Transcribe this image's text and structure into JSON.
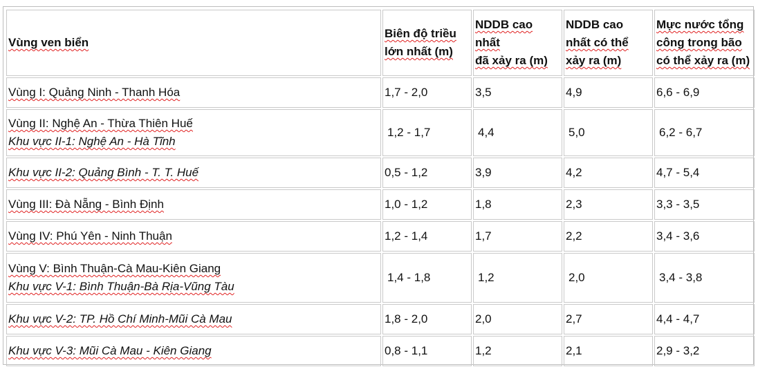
{
  "headers": [
    {
      "lines": [
        {
          "text": "Vùng ven biển",
          "ul": true
        }
      ]
    },
    {
      "lines": [
        {
          "text": "Biên độ triều",
          "ul": true
        },
        {
          "text": "lớn nhất (m)",
          "ul": true
        }
      ]
    },
    {
      "lines": [
        {
          "text": "NDDB cao nhất",
          "ul": true
        },
        {
          "text": "đã xảy ra (m)",
          "ul": true
        }
      ]
    },
    {
      "lines": [
        {
          "text": "NDDB cao",
          "ul": false
        },
        {
          "text": "nhất có thể",
          "ul": true
        },
        {
          "text": "xảy ra (m)",
          "ul": true
        }
      ]
    },
    {
      "lines": [
        {
          "text": "Mực nước tổng",
          "ul": true
        },
        {
          "text": "công trong bão",
          "ul": true
        },
        {
          "text": "có thể xảy ra (m)",
          "ul": true
        }
      ]
    }
  ],
  "rows": [
    {
      "region": [
        {
          "text": "Vùng I: Quảng Ninh - Thanh Hóa",
          "italic": false
        }
      ],
      "tide": "1,7 - 2,0",
      "nddb_max": "3,5",
      "nddb_possible": "4,9",
      "total_level": "6,6 - 6,9"
    },
    {
      "region": [
        {
          "text": "Vùng II: Nghệ An - Thừa Thiên Huế",
          "italic": false
        },
        {
          "text": "Khu vực II-1: Nghệ An - Hà Tĩnh",
          "italic": true
        }
      ],
      "tide": "1,2 - 1,7",
      "nddb_max": "4,4",
      "nddb_possible": "5,0",
      "total_level": "6,2 - 6,7"
    },
    {
      "region": [
        {
          "text": "Khu vực II-2: Quảng Bình - T. T. Huế",
          "italic": true
        }
      ],
      "tide": "0,5 - 1,2",
      "nddb_max": "3,9",
      "nddb_possible": "4,2",
      "total_level": "4,7 - 5,4"
    },
    {
      "region": [
        {
          "text": "Vùng III: Đà Nẵng - Bình Định",
          "italic": false
        }
      ],
      "tide": "1,0 - 1,2",
      "nddb_max": "1,8",
      "nddb_possible": "2,3",
      "total_level": "3,3 - 3,5"
    },
    {
      "region": [
        {
          "text": "Vùng IV: Phú Yên - Ninh Thuận",
          "italic": false
        }
      ],
      "tide": "1,2 - 1,4",
      "nddb_max": "1,7",
      "nddb_possible": "2,2",
      "total_level": "3,4 - 3,6"
    },
    {
      "region": [
        {
          "text": "Vùng V: Bình Thuận-Cà Mau-Kiên Giang",
          "italic": false
        },
        {
          "text": "Khu vực V-1: Bình Thuận-Bà Rịa-Vũng Tàu",
          "italic": true
        }
      ],
      "tide": "1,4 - 1,8",
      "nddb_max": "1,2",
      "nddb_possible": "2,0",
      "total_level": "3,4 - 3,8"
    },
    {
      "region": [
        {
          "text": "Khu vực V-2: TP. Hồ Chí Minh-Mũi Cà Mau",
          "italic": true
        }
      ],
      "tide": "1,8 - 2,0",
      "nddb_max": "2,0",
      "nddb_possible": "2,7",
      "total_level": "4,4 - 4,7"
    },
    {
      "region": [
        {
          "text": "Khu vực V-3: Mũi Cà Mau - Kiên Giang",
          "italic": true
        }
      ],
      "tide": "0,8 - 1,1",
      "nddb_max": "1,2",
      "nddb_possible": "2,1",
      "total_level": "2,9 - 3,2"
    }
  ]
}
